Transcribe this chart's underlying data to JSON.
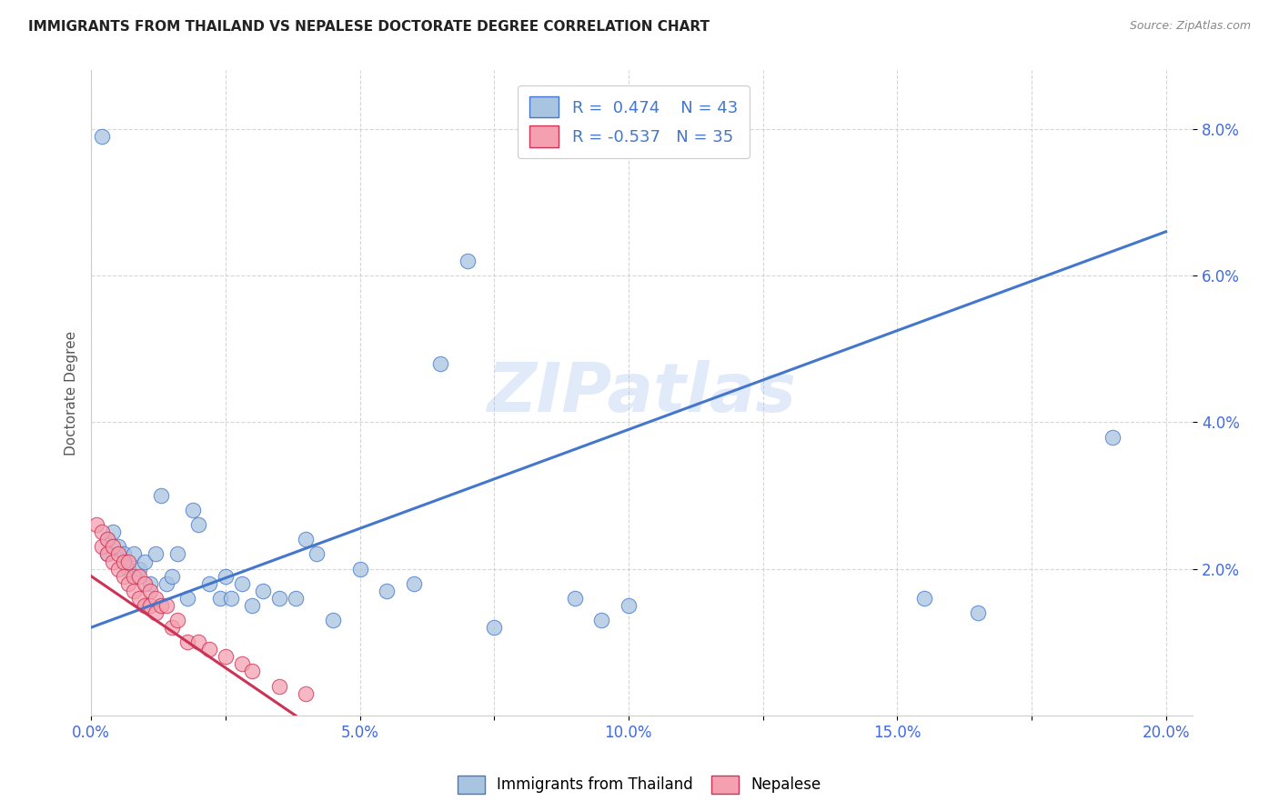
{
  "title": "IMMIGRANTS FROM THAILAND VS NEPALESE DOCTORATE DEGREE CORRELATION CHART",
  "source": "Source: ZipAtlas.com",
  "tick_color": "#4169e1",
  "ylabel": "Doctorate Degree",
  "xmin": 0.0,
  "xmax": 0.205,
  "ymin": 0.0,
  "ymax": 0.088,
  "xtick_labels": [
    "0.0%",
    "",
    "5.0%",
    "",
    "10.0%",
    "",
    "15.0%",
    "",
    "20.0%"
  ],
  "xtick_values": [
    0.0,
    0.025,
    0.05,
    0.075,
    0.1,
    0.125,
    0.15,
    0.175,
    0.2
  ],
  "ytick_labels": [
    "2.0%",
    "4.0%",
    "6.0%",
    "8.0%"
  ],
  "ytick_values": [
    0.02,
    0.04,
    0.06,
    0.08
  ],
  "blue_R": 0.474,
  "blue_N": 43,
  "pink_R": -0.537,
  "pink_N": 35,
  "blue_color": "#a8c4e0",
  "pink_color": "#f4a0b0",
  "blue_line_color": "#4477cc",
  "pink_line_color": "#cc3355",
  "watermark": "ZIPatlas",
  "blue_scatter_x": [
    0.002,
    0.003,
    0.003,
    0.004,
    0.005,
    0.006,
    0.007,
    0.008,
    0.009,
    0.01,
    0.011,
    0.012,
    0.013,
    0.014,
    0.015,
    0.016,
    0.018,
    0.019,
    0.02,
    0.022,
    0.024,
    0.025,
    0.026,
    0.028,
    0.03,
    0.032,
    0.035,
    0.038,
    0.04,
    0.042,
    0.045,
    0.05,
    0.055,
    0.06,
    0.065,
    0.07,
    0.075,
    0.09,
    0.095,
    0.1,
    0.155,
    0.165,
    0.19
  ],
  "blue_scatter_y": [
    0.079,
    0.022,
    0.024,
    0.025,
    0.023,
    0.022,
    0.02,
    0.022,
    0.02,
    0.021,
    0.018,
    0.022,
    0.03,
    0.018,
    0.019,
    0.022,
    0.016,
    0.028,
    0.026,
    0.018,
    0.016,
    0.019,
    0.016,
    0.018,
    0.015,
    0.017,
    0.016,
    0.016,
    0.024,
    0.022,
    0.013,
    0.02,
    0.017,
    0.018,
    0.048,
    0.062,
    0.012,
    0.016,
    0.013,
    0.015,
    0.016,
    0.014,
    0.038
  ],
  "pink_scatter_x": [
    0.001,
    0.002,
    0.002,
    0.003,
    0.003,
    0.004,
    0.004,
    0.005,
    0.005,
    0.006,
    0.006,
    0.007,
    0.007,
    0.008,
    0.008,
    0.009,
    0.009,
    0.01,
    0.01,
    0.011,
    0.011,
    0.012,
    0.012,
    0.013,
    0.014,
    0.015,
    0.016,
    0.018,
    0.02,
    0.022,
    0.025,
    0.028,
    0.03,
    0.035,
    0.04
  ],
  "pink_scatter_y": [
    0.026,
    0.025,
    0.023,
    0.024,
    0.022,
    0.023,
    0.021,
    0.022,
    0.02,
    0.021,
    0.019,
    0.021,
    0.018,
    0.019,
    0.017,
    0.019,
    0.016,
    0.018,
    0.015,
    0.017,
    0.015,
    0.016,
    0.014,
    0.015,
    0.015,
    0.012,
    0.013,
    0.01,
    0.01,
    0.009,
    0.008,
    0.007,
    0.006,
    0.004,
    0.003
  ],
  "blue_line_x_start": 0.0,
  "blue_line_x_end": 0.2,
  "blue_line_y_start": 0.012,
  "blue_line_y_end": 0.066,
  "pink_line_x_start": 0.0,
  "pink_line_x_end": 0.042,
  "pink_line_y_start": 0.019,
  "pink_line_y_end": -0.002,
  "legend_blue_label": "Immigrants from Thailand",
  "legend_pink_label": "Nepalese"
}
